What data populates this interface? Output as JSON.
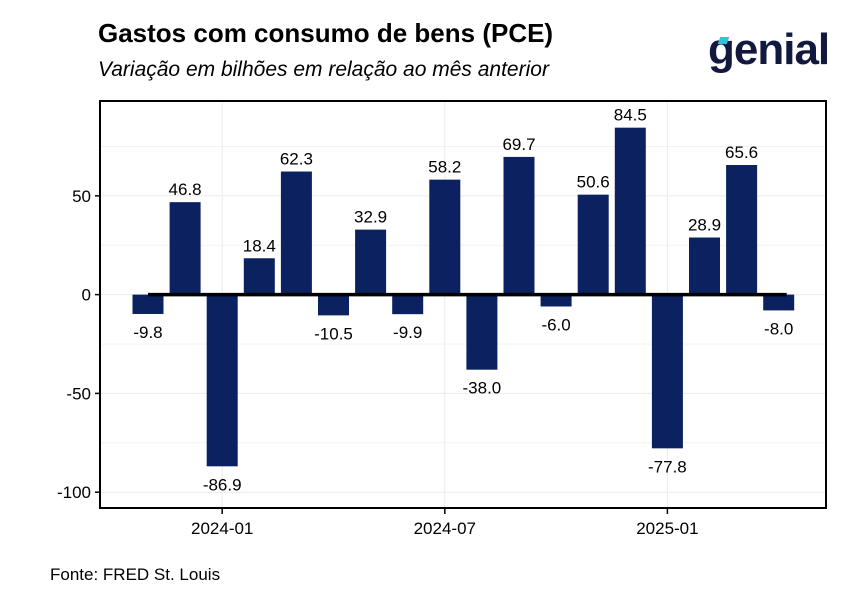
{
  "header": {
    "title": "Gastos com consumo de bens (PCE)",
    "subtitle": "Variação em bilhões em relação ao mês anterior",
    "logo_text": "genial"
  },
  "footer": {
    "source": "Fonte: FRED St. Louis"
  },
  "colors": {
    "bar": "#0b2160",
    "zero_line": "#000000",
    "grid": "#ebebeb",
    "logo": "#13183f",
    "logo_accent": "#2fc1d8"
  },
  "chart_data": {
    "type": "bar",
    "x": [
      "2023-11",
      "2023-12",
      "2024-01",
      "2024-02",
      "2024-03",
      "2024-04",
      "2024-05",
      "2024-06",
      "2024-07",
      "2024-08",
      "2024-09",
      "2024-10",
      "2024-11",
      "2024-12",
      "2025-01",
      "2025-02",
      "2025-03",
      "2025-04"
    ],
    "values": [
      -9.8,
      46.8,
      -86.9,
      18.4,
      62.3,
      -10.5,
      32.9,
      -9.9,
      58.2,
      -38.0,
      69.7,
      -6.0,
      50.6,
      84.5,
      -77.8,
      28.9,
      65.6,
      -8.0
    ],
    "data_labels": [
      "-9.8",
      "46.8",
      "-86.9",
      "18.4",
      "62.3",
      "-10.5",
      "32.9",
      "-9.9",
      "58.2",
      "-38.0",
      "69.7",
      "-6.0",
      "50.6",
      "84.5",
      "-77.8",
      "28.9",
      "65.6",
      "-8.0"
    ],
    "x_ticks": [
      "2024-01",
      "2024-07",
      "2025-01"
    ],
    "y_ticks": [
      50,
      0,
      -50,
      -100
    ],
    "ylim": [
      -108,
      98
    ],
    "grid": true,
    "legend": "none"
  }
}
